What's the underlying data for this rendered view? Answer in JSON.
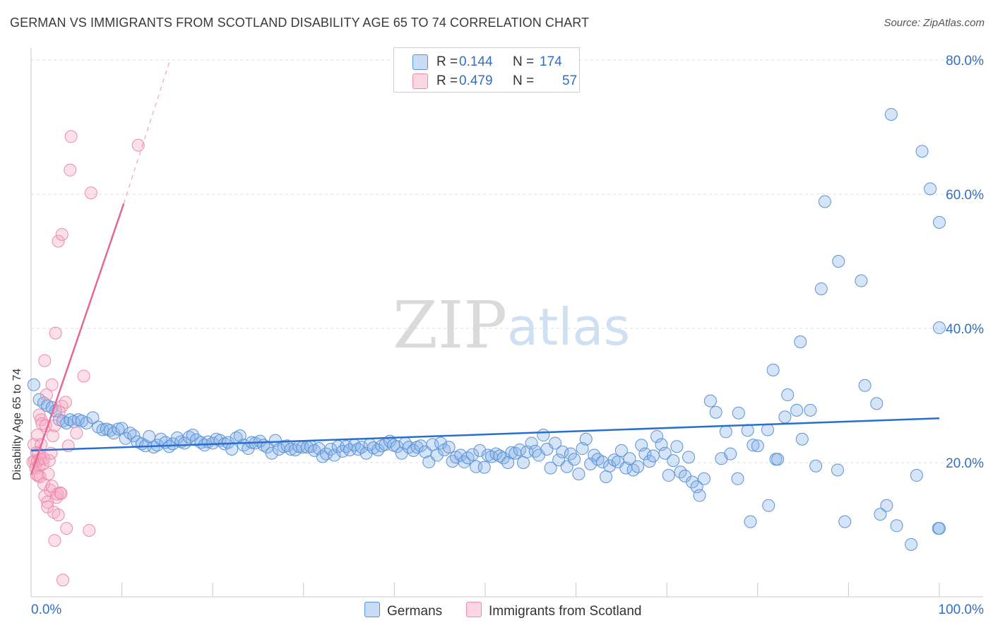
{
  "title": "GERMAN VS IMMIGRANTS FROM SCOTLAND DISABILITY AGE 65 TO 74 CORRELATION CHART",
  "source": "Source: ZipAtlas.com",
  "legend": {
    "rows": [
      {
        "r_label": "R =",
        "r_value": "0.144",
        "n_label": "N =",
        "n_value": "174"
      },
      {
        "r_label": "R =",
        "r_value": "0.479",
        "n_label": "N =",
        "n_value": "57"
      }
    ]
  },
  "bottom_legend": {
    "germans": "Germans",
    "scotland": "Immigrants from Scotland"
  },
  "colors": {
    "german_fill": "rgba(134,178,232,0.35)",
    "german_stroke": "#5b93d6",
    "german_line": "#2a6fcf",
    "scotland_fill": "rgba(246,166,192,0.35)",
    "scotland_stroke": "#ec8cad",
    "scotland_line": "#e5679a",
    "axis_label": "#2f6fc4",
    "grid": "#dcdcdc"
  },
  "chart_data": {
    "type": "scatter",
    "title": "GERMAN VS IMMIGRANTS FROM SCOTLAND DISABILITY AGE 65 TO 74 CORRELATION CHART",
    "xlabel": "",
    "ylabel": "Disability Age 65 to 74",
    "xlim": [
      0,
      100
    ],
    "ylim": [
      0,
      80
    ],
    "x_tick_labels": [
      "0.0%",
      "100.0%"
    ],
    "y_tick_labels": [
      "20.0%",
      "40.0%",
      "60.0%",
      "80.0%"
    ],
    "y_ticks": [
      20,
      40,
      60,
      80
    ],
    "grid": true,
    "legend_position": "top-center",
    "series": [
      {
        "name": "Germans",
        "r": 0.144,
        "n": 174,
        "trend": {
          "x0": 0,
          "y0": 21.8,
          "x1": 100,
          "y1": 26.6
        },
        "points": [
          [
            0.3,
            31.6
          ],
          [
            0.9,
            29.4
          ],
          [
            1.4,
            28.9
          ],
          [
            1.8,
            28.5
          ],
          [
            2.3,
            28.2
          ],
          [
            2.7,
            27.7
          ],
          [
            3.1,
            26.4
          ],
          [
            3.5,
            26.2
          ],
          [
            3.9,
            25.9
          ],
          [
            4.3,
            26.4
          ],
          [
            4.7,
            26.1
          ],
          [
            5.2,
            26.4
          ],
          [
            5.6,
            26.2
          ],
          [
            6.1,
            25.9
          ],
          [
            6.8,
            26.7
          ],
          [
            7.4,
            25.3
          ],
          [
            7.9,
            24.9
          ],
          [
            8.3,
            25.0
          ],
          [
            8.7,
            24.8
          ],
          [
            9.1,
            24.4
          ],
          [
            9.6,
            25.0
          ],
          [
            10.0,
            25.1
          ],
          [
            10.4,
            23.6
          ],
          [
            10.9,
            24.4
          ],
          [
            11.3,
            24.0
          ],
          [
            11.7,
            23.1
          ],
          [
            12.2,
            22.8
          ],
          [
            12.6,
            22.5
          ],
          [
            13.0,
            23.9
          ],
          [
            13.5,
            22.3
          ],
          [
            13.9,
            22.6
          ],
          [
            14.3,
            23.5
          ],
          [
            14.8,
            23.0
          ],
          [
            15.2,
            22.4
          ],
          [
            15.6,
            22.8
          ],
          [
            16.1,
            23.7
          ],
          [
            16.5,
            23.1
          ],
          [
            16.9,
            22.9
          ],
          [
            17.4,
            23.8
          ],
          [
            17.8,
            24.1
          ],
          [
            18.2,
            23.4
          ],
          [
            18.7,
            23.0
          ],
          [
            19.1,
            22.6
          ],
          [
            19.5,
            23.1
          ],
          [
            20.0,
            22.9
          ],
          [
            20.4,
            23.5
          ],
          [
            20.8,
            23.3
          ],
          [
            21.3,
            22.8
          ],
          [
            21.7,
            23.0
          ],
          [
            22.1,
            22.0
          ],
          [
            22.6,
            23.7
          ],
          [
            23.0,
            24.0
          ],
          [
            23.4,
            22.6
          ],
          [
            23.9,
            22.1
          ],
          [
            24.3,
            23.0
          ],
          [
            24.7,
            22.9
          ],
          [
            25.2,
            23.2
          ],
          [
            25.6,
            22.6
          ],
          [
            26.0,
            22.3
          ],
          [
            26.5,
            21.4
          ],
          [
            26.9,
            23.3
          ],
          [
            27.3,
            22.0
          ],
          [
            27.8,
            22.4
          ],
          [
            28.2,
            22.5
          ],
          [
            28.6,
            22.0
          ],
          [
            29.1,
            21.9
          ],
          [
            29.5,
            22.4
          ],
          [
            29.9,
            22.3
          ],
          [
            30.4,
            22.3
          ],
          [
            30.8,
            22.4
          ],
          [
            31.2,
            21.8
          ],
          [
            31.7,
            22.1
          ],
          [
            32.1,
            20.9
          ],
          [
            32.5,
            21.3
          ],
          [
            33.0,
            22.0
          ],
          [
            33.4,
            21.1
          ],
          [
            33.8,
            22.4
          ],
          [
            34.3,
            21.7
          ],
          [
            34.7,
            22.4
          ],
          [
            35.1,
            21.9
          ],
          [
            35.6,
            22.6
          ],
          [
            36.0,
            22.0
          ],
          [
            36.4,
            22.3
          ],
          [
            36.9,
            21.4
          ],
          [
            37.3,
            22.7
          ],
          [
            37.7,
            22.2
          ],
          [
            38.2,
            21.9
          ],
          [
            38.6,
            22.5
          ],
          [
            39.0,
            22.7
          ],
          [
            39.5,
            23.2
          ],
          [
            39.9,
            22.6
          ],
          [
            40.3,
            22.4
          ],
          [
            40.8,
            21.4
          ],
          [
            41.2,
            22.9
          ],
          [
            41.6,
            22.3
          ],
          [
            42.1,
            21.8
          ],
          [
            42.5,
            22.3
          ],
          [
            42.9,
            22.5
          ],
          [
            43.4,
            21.6
          ],
          [
            43.8,
            20.1
          ],
          [
            44.2,
            22.7
          ],
          [
            44.7,
            21.1
          ],
          [
            45.1,
            22.9
          ],
          [
            45.5,
            21.9
          ],
          [
            46.0,
            22.3
          ],
          [
            46.4,
            20.2
          ],
          [
            46.8,
            20.8
          ],
          [
            47.3,
            21.1
          ],
          [
            47.7,
            20.1
          ],
          [
            48.1,
            20.7
          ],
          [
            48.6,
            21.2
          ],
          [
            49.0,
            19.4
          ],
          [
            49.4,
            21.8
          ],
          [
            49.9,
            19.3
          ],
          [
            50.3,
            21.1
          ],
          [
            50.7,
            20.9
          ],
          [
            51.2,
            21.3
          ],
          [
            51.6,
            21.0
          ],
          [
            52.0,
            20.7
          ],
          [
            52.5,
            20.0
          ],
          [
            52.9,
            21.5
          ],
          [
            53.3,
            21.4
          ],
          [
            53.8,
            21.9
          ],
          [
            54.2,
            20.0
          ],
          [
            54.6,
            21.6
          ],
          [
            55.1,
            22.9
          ],
          [
            55.5,
            21.7
          ],
          [
            55.9,
            21.1
          ],
          [
            56.4,
            24.1
          ],
          [
            56.8,
            22.0
          ],
          [
            57.2,
            19.2
          ],
          [
            57.7,
            22.9
          ],
          [
            58.1,
            20.4
          ],
          [
            58.5,
            21.6
          ],
          [
            59.0,
            19.4
          ],
          [
            59.4,
            21.3
          ],
          [
            59.8,
            20.5
          ],
          [
            60.3,
            18.3
          ],
          [
            60.7,
            22.1
          ],
          [
            61.1,
            23.5
          ],
          [
            61.6,
            19.8
          ],
          [
            62.0,
            21.1
          ],
          [
            62.4,
            20.5
          ],
          [
            62.9,
            20.1
          ],
          [
            63.3,
            17.9
          ],
          [
            63.7,
            19.5
          ],
          [
            64.2,
            20.4
          ],
          [
            64.6,
            20.1
          ],
          [
            65.0,
            21.8
          ],
          [
            65.5,
            19.2
          ],
          [
            65.9,
            20.6
          ],
          [
            66.3,
            18.9
          ],
          [
            66.8,
            19.4
          ],
          [
            67.2,
            22.6
          ],
          [
            67.6,
            21.3
          ],
          [
            68.1,
            20.2
          ],
          [
            68.5,
            21.0
          ],
          [
            68.9,
            23.9
          ],
          [
            69.4,
            22.7
          ],
          [
            69.8,
            21.4
          ],
          [
            70.2,
            18.1
          ],
          [
            70.7,
            20.3
          ],
          [
            71.1,
            22.4
          ],
          [
            71.5,
            18.6
          ],
          [
            72.0,
            18.0
          ],
          [
            72.4,
            20.8
          ],
          [
            72.8,
            17.1
          ],
          [
            73.3,
            16.4
          ],
          [
            73.6,
            15.1
          ],
          [
            74.1,
            17.6
          ],
          [
            74.8,
            29.2
          ],
          [
            75.4,
            27.5
          ],
          [
            76.0,
            20.6
          ],
          [
            76.5,
            24.6
          ],
          [
            77.0,
            21.3
          ],
          [
            77.8,
            17.6
          ],
          [
            77.9,
            27.4
          ],
          [
            78.9,
            24.8
          ],
          [
            79.2,
            11.2
          ],
          [
            79.5,
            22.6
          ],
          [
            80.0,
            22.5
          ],
          [
            81.1,
            24.9
          ],
          [
            81.2,
            13.6
          ],
          [
            81.7,
            33.8
          ],
          [
            82.0,
            20.5
          ],
          [
            82.2,
            20.5
          ],
          [
            83.0,
            26.8
          ],
          [
            83.3,
            30.1
          ],
          [
            84.3,
            27.8
          ],
          [
            84.7,
            38.0
          ],
          [
            84.9,
            23.5
          ],
          [
            85.8,
            27.8
          ],
          [
            86.4,
            19.5
          ],
          [
            87.0,
            45.9
          ],
          [
            87.4,
            58.9
          ],
          [
            88.8,
            18.9
          ],
          [
            88.9,
            50.0
          ],
          [
            89.6,
            11.2
          ],
          [
            91.4,
            47.1
          ],
          [
            91.8,
            31.5
          ],
          [
            93.1,
            28.8
          ],
          [
            93.5,
            12.3
          ],
          [
            94.2,
            13.6
          ],
          [
            94.7,
            71.9
          ],
          [
            95.3,
            10.6
          ],
          [
            96.9,
            7.8
          ],
          [
            97.5,
            18.1
          ],
          [
            98.1,
            66.4
          ],
          [
            99.0,
            60.8
          ],
          [
            99.9,
            10.2
          ],
          [
            100.0,
            55.8
          ],
          [
            100.0,
            10.2
          ],
          [
            100.0,
            40.1
          ]
        ]
      },
      {
        "name": "Immigrants from Scotland",
        "r": 0.479,
        "n": 57,
        "trend": {
          "x0": 0,
          "y0": 18.2,
          "x1": 10.2,
          "y1": 58.6,
          "dash_x1": 15.3,
          "dash_y1": 80.0
        },
        "points": [
          [
            0.2,
            20.1
          ],
          [
            0.3,
            22.7
          ],
          [
            0.4,
            20.3
          ],
          [
            0.5,
            19.2
          ],
          [
            0.6,
            18.2
          ],
          [
            0.6,
            21.5
          ],
          [
            0.7,
            24.1
          ],
          [
            0.7,
            20.2
          ],
          [
            0.8,
            18.0
          ],
          [
            0.8,
            21.4
          ],
          [
            0.9,
            27.1
          ],
          [
            0.9,
            19.6
          ],
          [
            1.0,
            17.9
          ],
          [
            1.0,
            20.5
          ],
          [
            1.1,
            22.7
          ],
          [
            1.1,
            26.4
          ],
          [
            1.2,
            25.8
          ],
          [
            1.3,
            19.8
          ],
          [
            1.4,
            20.6
          ],
          [
            1.4,
            16.8
          ],
          [
            1.5,
            35.2
          ],
          [
            1.5,
            15.0
          ],
          [
            1.6,
            25.5
          ],
          [
            1.7,
            30.1
          ],
          [
            1.8,
            14.1
          ],
          [
            1.8,
            13.4
          ],
          [
            1.9,
            18.3
          ],
          [
            2.0,
            20.3
          ],
          [
            2.1,
            15.9
          ],
          [
            2.2,
            21.4
          ],
          [
            2.3,
            31.6
          ],
          [
            2.3,
            16.5
          ],
          [
            2.4,
            24.0
          ],
          [
            2.5,
            12.6
          ],
          [
            2.6,
            8.4
          ],
          [
            2.6,
            25.5
          ],
          [
            2.7,
            39.3
          ],
          [
            2.8,
            14.8
          ],
          [
            2.9,
            15.3
          ],
          [
            3.0,
            12.2
          ],
          [
            3.0,
            53.0
          ],
          [
            3.1,
            27.6
          ],
          [
            3.2,
            15.5
          ],
          [
            3.3,
            15.4
          ],
          [
            3.4,
            54.0
          ],
          [
            3.4,
            28.4
          ],
          [
            3.5,
            2.5
          ],
          [
            3.8,
            29.0
          ],
          [
            3.9,
            10.2
          ],
          [
            4.1,
            22.5
          ],
          [
            4.3,
            63.6
          ],
          [
            4.4,
            68.6
          ],
          [
            5.0,
            24.4
          ],
          [
            5.8,
            32.9
          ],
          [
            6.4,
            9.9
          ],
          [
            6.6,
            60.2
          ],
          [
            11.8,
            67.3
          ]
        ]
      }
    ]
  }
}
